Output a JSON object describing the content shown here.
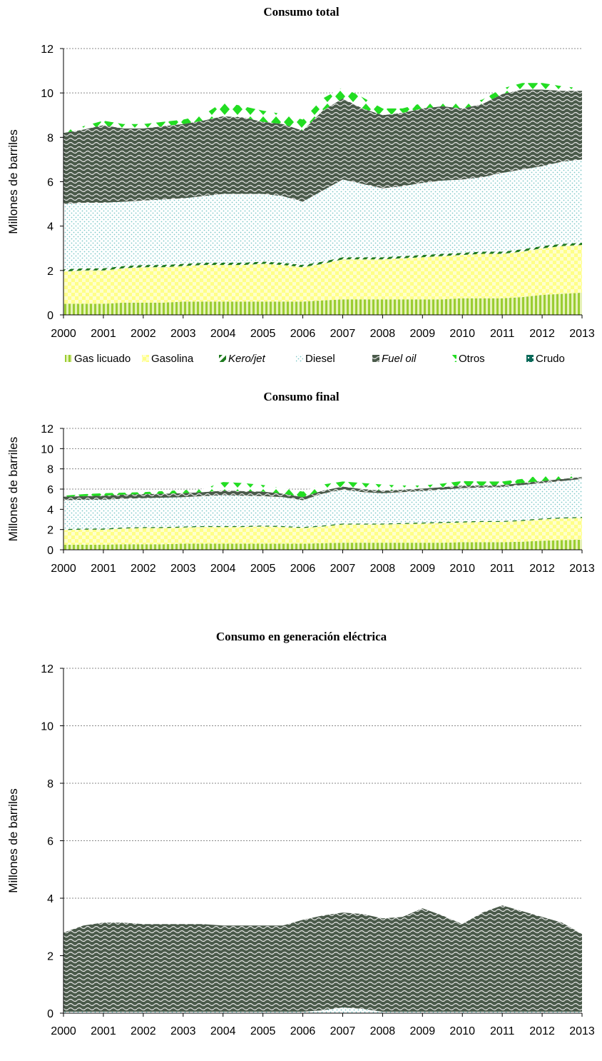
{
  "legend": [
    {
      "name": "Gas licuado",
      "icon": "striped-swatch-icon",
      "italic": false
    },
    {
      "name": "Gasolina",
      "icon": "checker-swatch-icon",
      "italic": false
    },
    {
      "name": "Kero/jet",
      "icon": "diagonal-swatch-icon",
      "italic": true
    },
    {
      "name": "Diesel",
      "icon": "dotted-swatch-icon",
      "italic": false
    },
    {
      "name": "Fuel oil",
      "icon": "wave-swatch-icon",
      "italic": true
    },
    {
      "name": "Otros",
      "icon": "diamond-swatch-icon",
      "italic": false
    },
    {
      "name": "Crudo",
      "icon": "grid-swatch-icon",
      "italic": false
    }
  ],
  "colors": {
    "gas_licuado": "#9acd32",
    "gasolina": "#ffff99",
    "kero_jet": "#1e7a1e",
    "diesel": "#8fd3d3",
    "fuel_oil": "#4a5a4a",
    "otros": "#22dd22",
    "crudo": "#0a6a5a"
  },
  "chart_data": [
    {
      "type": "area",
      "title": "Consumo total",
      "ylabel": "Millones de barriles",
      "xlabel": "",
      "ylim": [
        0,
        12
      ],
      "yticks": [
        "0",
        "2",
        "4",
        "6",
        "8",
        "10",
        "12"
      ],
      "xticks": [
        "2000",
        "2001",
        "2002",
        "2003",
        "2004",
        "2005",
        "2006",
        "2007",
        "2008",
        "2009",
        "2010",
        "2011",
        "2012",
        "2013"
      ],
      "stacked": true,
      "grid": "horizontal dotted",
      "x": [
        2000,
        2000.5,
        2001,
        2001.5,
        2002,
        2002.5,
        2003,
        2003.5,
        2004,
        2004.5,
        2005,
        2005.5,
        2006,
        2006.5,
        2007,
        2007.5,
        2008,
        2008.5,
        2009,
        2009.5,
        2010,
        2010.5,
        2011,
        2011.5,
        2012,
        2012.5,
        2013
      ],
      "series": [
        {
          "name": "Gas licuado",
          "values": [
            0.5,
            0.5,
            0.5,
            0.55,
            0.55,
            0.55,
            0.6,
            0.6,
            0.6,
            0.6,
            0.6,
            0.6,
            0.6,
            0.65,
            0.7,
            0.7,
            0.7,
            0.7,
            0.7,
            0.7,
            0.75,
            0.75,
            0.75,
            0.8,
            0.9,
            0.95,
            1.0
          ]
        },
        {
          "name": "Gasolina",
          "values": [
            1.45,
            1.5,
            1.5,
            1.55,
            1.6,
            1.6,
            1.6,
            1.65,
            1.65,
            1.65,
            1.7,
            1.65,
            1.55,
            1.65,
            1.8,
            1.8,
            1.8,
            1.85,
            1.9,
            1.95,
            1.95,
            2.0,
            2.0,
            2.05,
            2.1,
            2.15,
            2.15
          ]
        },
        {
          "name": "Kero/jet",
          "values": [
            0.1,
            0.1,
            0.1,
            0.1,
            0.1,
            0.1,
            0.1,
            0.1,
            0.1,
            0.1,
            0.1,
            0.1,
            0.1,
            0.1,
            0.1,
            0.1,
            0.1,
            0.1,
            0.1,
            0.1,
            0.1,
            0.1,
            0.1,
            0.1,
            0.1,
            0.1,
            0.1
          ]
        },
        {
          "name": "Diesel",
          "values": [
            2.95,
            2.95,
            2.95,
            2.9,
            2.9,
            2.95,
            2.95,
            3.0,
            3.1,
            3.1,
            3.05,
            3.0,
            2.85,
            3.2,
            3.5,
            3.3,
            3.1,
            3.15,
            3.25,
            3.3,
            3.3,
            3.35,
            3.55,
            3.6,
            3.6,
            3.7,
            3.75
          ]
        },
        {
          "name": "Fuel oil",
          "values": [
            3.2,
            3.3,
            3.5,
            3.3,
            3.25,
            3.3,
            3.35,
            3.4,
            3.5,
            3.45,
            3.25,
            3.25,
            3.2,
            3.6,
            3.65,
            3.4,
            3.3,
            3.3,
            3.35,
            3.35,
            3.2,
            3.3,
            3.55,
            3.6,
            3.45,
            3.2,
            3.1
          ]
        },
        {
          "name": "Otros",
          "values": [
            0.1,
            0.15,
            0.2,
            0.2,
            0.2,
            0.2,
            0.2,
            0.25,
            0.65,
            0.5,
            0.5,
            0.45,
            0.5,
            0.55,
            0.5,
            0.5,
            0.3,
            0.2,
            0.25,
            0.2,
            0.2,
            0.2,
            0.25,
            0.3,
            0.3,
            0.2,
            0.1
          ]
        },
        {
          "name": "Crudo",
          "values": [
            0,
            0,
            0,
            0,
            0,
            0,
            0,
            0,
            0,
            0,
            0,
            0,
            0,
            0,
            0,
            0,
            0,
            0,
            0,
            0,
            0,
            0,
            0,
            0,
            0,
            0,
            0
          ]
        }
      ]
    },
    {
      "type": "area",
      "title": "Consumo final",
      "ylabel": "Millones de barriles",
      "xlabel": "",
      "ylim": [
        0,
        12
      ],
      "yticks": [
        "0",
        "2",
        "4",
        "6",
        "8",
        "10",
        "12"
      ],
      "xticks": [
        "2000",
        "2001",
        "2002",
        "2003",
        "2004",
        "2005",
        "2006",
        "2007",
        "2008",
        "2009",
        "2010",
        "2011",
        "2012",
        "2013"
      ],
      "stacked": true,
      "grid": "horizontal dotted",
      "x": [
        2000,
        2000.5,
        2001,
        2001.5,
        2002,
        2002.5,
        2003,
        2003.5,
        2004,
        2004.5,
        2005,
        2005.5,
        2006,
        2006.5,
        2007,
        2007.5,
        2008,
        2008.5,
        2009,
        2009.5,
        2010,
        2010.5,
        2011,
        2011.5,
        2012,
        2012.5,
        2013
      ],
      "series": [
        {
          "name": "Gas licuado",
          "values": [
            0.5,
            0.5,
            0.5,
            0.55,
            0.55,
            0.55,
            0.6,
            0.6,
            0.6,
            0.6,
            0.6,
            0.6,
            0.6,
            0.65,
            0.7,
            0.7,
            0.7,
            0.7,
            0.7,
            0.7,
            0.75,
            0.75,
            0.75,
            0.8,
            0.9,
            0.95,
            1.0
          ]
        },
        {
          "name": "Gasolina",
          "values": [
            1.45,
            1.5,
            1.5,
            1.55,
            1.6,
            1.6,
            1.6,
            1.65,
            1.65,
            1.65,
            1.7,
            1.65,
            1.55,
            1.65,
            1.8,
            1.8,
            1.8,
            1.85,
            1.9,
            1.95,
            1.95,
            2.0,
            2.0,
            2.05,
            2.1,
            2.15,
            2.15
          ]
        },
        {
          "name": "Kero/jet",
          "values": [
            0.1,
            0.1,
            0.1,
            0.1,
            0.1,
            0.1,
            0.1,
            0.1,
            0.1,
            0.1,
            0.1,
            0.1,
            0.1,
            0.1,
            0.1,
            0.1,
            0.1,
            0.1,
            0.1,
            0.1,
            0.1,
            0.1,
            0.1,
            0.1,
            0.1,
            0.1,
            0.1
          ]
        },
        {
          "name": "Diesel",
          "values": [
            2.85,
            2.85,
            2.85,
            2.85,
            2.85,
            2.9,
            2.9,
            2.95,
            3.05,
            3.0,
            2.9,
            2.85,
            2.65,
            3.15,
            3.35,
            3.1,
            3.0,
            3.05,
            3.1,
            3.2,
            3.3,
            3.3,
            3.35,
            3.45,
            3.5,
            3.6,
            3.75
          ]
        },
        {
          "name": "Fuel oil",
          "values": [
            0.35,
            0.35,
            0.4,
            0.4,
            0.4,
            0.4,
            0.4,
            0.4,
            0.45,
            0.45,
            0.45,
            0.35,
            0.3,
            0.3,
            0.3,
            0.3,
            0.25,
            0.25,
            0.25,
            0.25,
            0.25,
            0.2,
            0.2,
            0.2,
            0.2,
            0.2,
            0.2
          ]
        },
        {
          "name": "Otros",
          "values": [
            0.1,
            0.2,
            0.25,
            0.2,
            0.2,
            0.25,
            0.3,
            0.3,
            0.85,
            0.8,
            0.65,
            0.55,
            0.55,
            0.6,
            0.5,
            0.6,
            0.6,
            0.4,
            0.3,
            0.35,
            0.45,
            0.4,
            0.35,
            0.4,
            0.6,
            0.45,
            0.3
          ]
        },
        {
          "name": "Crudo",
          "values": [
            0,
            0,
            0,
            0,
            0,
            0,
            0,
            0,
            0,
            0,
            0,
            0,
            0,
            0,
            0,
            0,
            0,
            0,
            0,
            0,
            0,
            0,
            0,
            0,
            0,
            0,
            0
          ]
        }
      ]
    },
    {
      "type": "area",
      "title": "Consumo en generación eléctrica",
      "ylabel": "Millones de barriles",
      "xlabel": "",
      "ylim": [
        0,
        12
      ],
      "yticks": [
        "0",
        "2",
        "4",
        "6",
        "8",
        "10",
        "12"
      ],
      "xticks": [
        "2000",
        "2001",
        "2002",
        "2003",
        "2004",
        "2005",
        "2006",
        "2007",
        "2008",
        "2009",
        "2010",
        "2011",
        "2012",
        "2013"
      ],
      "stacked": true,
      "grid": "horizontal dotted",
      "x": [
        2000,
        2000.5,
        2001,
        2001.5,
        2002,
        2002.5,
        2003,
        2003.5,
        2004,
        2004.5,
        2005,
        2005.5,
        2006,
        2006.5,
        2007,
        2007.5,
        2008,
        2008.5,
        2009,
        2009.5,
        2010,
        2010.5,
        2011,
        2011.5,
        2012,
        2012.5,
        2013
      ],
      "series": [
        {
          "name": "Gas licuado",
          "values": [
            0,
            0,
            0,
            0,
            0,
            0,
            0,
            0,
            0,
            0,
            0,
            0,
            0,
            0,
            0,
            0,
            0,
            0,
            0,
            0,
            0,
            0,
            0,
            0,
            0,
            0,
            0
          ]
        },
        {
          "name": "Gasolina",
          "values": [
            0,
            0,
            0,
            0,
            0,
            0,
            0,
            0,
            0,
            0,
            0,
            0,
            0,
            0,
            0,
            0,
            0,
            0,
            0,
            0,
            0,
            0,
            0,
            0,
            0,
            0,
            0
          ]
        },
        {
          "name": "Kero/jet",
          "values": [
            0,
            0,
            0,
            0,
            0,
            0,
            0,
            0,
            0,
            0,
            0,
            0,
            0,
            0,
            0,
            0,
            0,
            0,
            0,
            0,
            0,
            0,
            0,
            0,
            0,
            0,
            0
          ]
        },
        {
          "name": "Diesel",
          "values": [
            0.05,
            0.05,
            0.05,
            0.05,
            0.05,
            0.05,
            0.05,
            0.05,
            0.05,
            0.05,
            0.05,
            0.05,
            0.05,
            0.1,
            0.2,
            0.15,
            0.05,
            0.05,
            0.05,
            0.05,
            0.05,
            0.05,
            0.05,
            0.05,
            0.05,
            0.05,
            0.05
          ]
        },
        {
          "name": "Fuel oil",
          "values": [
            2.75,
            3.0,
            3.1,
            3.1,
            3.05,
            3.05,
            3.05,
            3.05,
            3.0,
            3.0,
            3.0,
            3.0,
            3.2,
            3.3,
            3.3,
            3.3,
            3.25,
            3.3,
            3.6,
            3.35,
            3.05,
            3.45,
            3.7,
            3.5,
            3.3,
            3.1,
            2.7
          ]
        },
        {
          "name": "Otros",
          "values": [
            0,
            0,
            0,
            0,
            0,
            0,
            0,
            0,
            0,
            0,
            0,
            0,
            0,
            0,
            0,
            0,
            0,
            0,
            0,
            0,
            0,
            0,
            0,
            0,
            0,
            0,
            0
          ]
        },
        {
          "name": "Crudo",
          "values": [
            0,
            0,
            0,
            0,
            0,
            0,
            0,
            0,
            0,
            0,
            0,
            0,
            0,
            0,
            0,
            0,
            0,
            0,
            0,
            0,
            0,
            0,
            0,
            0,
            0,
            0,
            0
          ]
        }
      ]
    }
  ]
}
